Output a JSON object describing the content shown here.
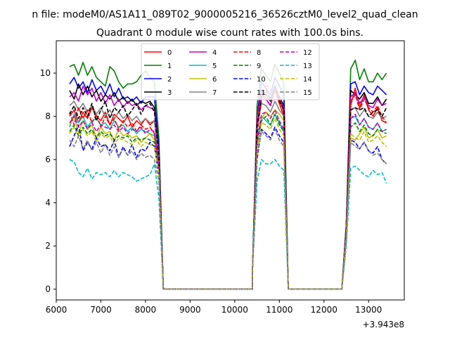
{
  "page": {
    "suptitle": "n file: modeM0/AS1A11_089T02_9000005216_36526cztM0_level2_quad_clean",
    "title": "Quadrant 0 module wise count rates with 100.0s bins.",
    "offset_text": "+3.943e8"
  },
  "chart_data": {
    "type": "line",
    "title": "Quadrant 0 module wise count rates with 100.0s bins.",
    "xlabel": "",
    "ylabel": "",
    "x_offset": "+3.943e8",
    "xlim": [
      6000,
      13800
    ],
    "ylim": [
      -0.5,
      11.5
    ],
    "xticks": [
      6000,
      7000,
      8000,
      9000,
      10000,
      11000,
      12000,
      13000
    ],
    "yticks": [
      0,
      2,
      4,
      6,
      8,
      10
    ],
    "grid": false,
    "legend_position": "upper center",
    "legend_ncol": 4,
    "seg1_x": [
      6300,
      6400,
      6500,
      6600,
      6700,
      6800,
      6900,
      7000,
      7100,
      7200,
      7300,
      7400,
      7500,
      7600,
      7700,
      7800,
      7900,
      8000,
      8100,
      8200,
      8300,
      8400
    ],
    "seg2_x": [
      10400,
      10500,
      10600,
      10700,
      10800,
      10900,
      11000,
      11100,
      11200
    ],
    "seg3_x": [
      12400,
      12500,
      12600,
      12700,
      12800,
      12900,
      13000,
      13100,
      13200,
      13300,
      13400
    ],
    "zero_ranges": [
      [
        8400,
        10400
      ],
      [
        11200,
        12400
      ]
    ],
    "series": [
      {
        "name": "0",
        "color": "#ff0000",
        "dash": "solid",
        "seg1": [
          8.0,
          8.3,
          7.7,
          8.2,
          7.9,
          8.4,
          8.0,
          7.8,
          8.2,
          7.6,
          8.1,
          7.9,
          7.7,
          8.0,
          7.5,
          7.8,
          7.6,
          7.9,
          7.6,
          7.8,
          6.0,
          0
        ],
        "seg2": [
          1,
          7.5,
          9.0,
          8.8,
          8.5,
          9.2,
          8.6,
          8.0,
          0
        ],
        "seg3": [
          0,
          2.5,
          8.5,
          9.3,
          8.4,
          9.0,
          8.3,
          8.0,
          8.4,
          7.8,
          7.7
        ]
      },
      {
        "name": "1",
        "color": "#008000",
        "dash": "solid",
        "seg1": [
          10.3,
          10.4,
          9.9,
          10.5,
          9.9,
          10.3,
          9.8,
          9.6,
          9.4,
          10.3,
          10.1,
          9.6,
          9.3,
          9.5,
          9.5,
          9.6,
          9.9,
          10.1,
          9.8,
          9.6,
          7.0,
          0
        ],
        "seg2": [
          1,
          8.5,
          10.2,
          9.9,
          9.6,
          10.4,
          10.0,
          9.5,
          0
        ],
        "seg3": [
          0,
          3,
          10.2,
          10.6,
          9.7,
          10.2,
          9.6,
          9.6,
          10.0,
          9.7,
          10.0
        ]
      },
      {
        "name": "2",
        "color": "#0000ff",
        "dash": "solid",
        "seg1": [
          9.5,
          9.8,
          9.3,
          9.6,
          9.1,
          9.7,
          9.2,
          9.4,
          9.0,
          9.5,
          8.9,
          9.3,
          8.8,
          8.9,
          8.7,
          8.9,
          8.6,
          8.9,
          8.9,
          8.9,
          6.5,
          0
        ],
        "seg2": [
          1,
          8,
          9.6,
          9.3,
          9.0,
          9.8,
          9.4,
          9.0,
          0
        ],
        "seg3": [
          0,
          3,
          9.5,
          9.6,
          9.0,
          9.4,
          9.1,
          9.0,
          9.4,
          9.2,
          9.0
        ]
      },
      {
        "name": "3",
        "color": "#000000",
        "dash": "solid",
        "seg1": [
          9.2,
          8.8,
          9.5,
          9.0,
          9.4,
          8.9,
          9.2,
          8.7,
          9.0,
          8.8,
          9.1,
          8.7,
          8.9,
          8.6,
          8.8,
          8.5,
          8.7,
          8.6,
          8.7,
          8.4,
          6.3,
          0
        ],
        "seg2": [
          1,
          8,
          9.2,
          9.0,
          8.7,
          9.4,
          8.9,
          8.5,
          0
        ],
        "seg3": [
          0,
          3,
          9.2,
          9.0,
          8.8,
          9.1,
          8.6,
          8.6,
          8.9,
          8.5,
          8.8
        ]
      },
      {
        "name": "4",
        "color": "#bf00bf",
        "dash": "solid",
        "seg1": [
          8.9,
          9.1,
          8.7,
          9.4,
          9.0,
          9.3,
          8.7,
          9.1,
          8.6,
          9.0,
          8.5,
          8.8,
          8.4,
          8.7,
          8.5,
          8.6,
          8.3,
          8.5,
          8.4,
          8.3,
          6.2,
          0
        ],
        "seg2": [
          1,
          8,
          9.1,
          8.8,
          8.5,
          9.3,
          8.8,
          8.4,
          0
        ],
        "seg3": [
          0,
          3,
          8.9,
          9.1,
          8.6,
          8.9,
          8.5,
          8.4,
          8.8,
          8.5,
          8.6
        ]
      },
      {
        "name": "5",
        "color": "#00bfbf",
        "dash": "solid",
        "seg1": [
          7.5,
          8.1,
          7.7,
          8.0,
          7.5,
          7.8,
          7.9,
          7.6,
          7.7,
          7.4,
          7.8,
          7.5,
          7.6,
          7.3,
          7.5,
          7.2,
          7.4,
          7.3,
          7.2,
          7.1,
          5.8,
          0
        ],
        "seg2": [
          1,
          7,
          8.0,
          7.8,
          7.6,
          8.1,
          7.7,
          7.3,
          0
        ],
        "seg3": [
          0,
          2.5,
          7.9,
          8.0,
          7.6,
          7.9,
          7.5,
          7.4,
          7.7,
          7.3,
          7.4
        ]
      },
      {
        "name": "6",
        "color": "#bfbf00",
        "dash": "solid",
        "seg1": [
          7.6,
          8.0,
          7.2,
          7.8,
          7.4,
          7.6,
          7.0,
          7.5,
          7.2,
          7.3,
          6.9,
          7.4,
          7.1,
          7.2,
          7.0,
          7.1,
          6.8,
          7.0,
          7.2,
          6.9,
          5.5,
          0
        ],
        "seg2": [
          1,
          6.5,
          7.9,
          8.2,
          8.0,
          8.3,
          8.1,
          7.8,
          0
        ],
        "seg3": [
          0,
          2.5,
          7.0,
          6.9,
          7.2,
          7.5,
          7.0,
          7.1,
          7.4,
          7.0,
          7.1
        ]
      },
      {
        "name": "7",
        "color": "#808080",
        "dash": "solid",
        "seg1": [
          8.5,
          8.7,
          8.3,
          8.6,
          8.2,
          8.5,
          8.1,
          8.4,
          8.0,
          8.3,
          7.9,
          8.2,
          7.9,
          8.1,
          7.8,
          8.0,
          7.7,
          7.9,
          7.7,
          7.8,
          6.0,
          0
        ],
        "seg2": [
          1,
          7.5,
          8.6,
          8.5,
          8.2,
          8.7,
          8.3,
          8.0,
          0
        ],
        "seg3": [
          0,
          2.8,
          8.3,
          8.4,
          8.0,
          8.3,
          8.0,
          7.9,
          8.2,
          7.9,
          8.0
        ]
      },
      {
        "name": "8",
        "color": "#ff0000",
        "dash": "dashed",
        "seg1": [
          8.2,
          7.6,
          8.4,
          7.9,
          8.3,
          7.7,
          8.1,
          7.5,
          8.0,
          7.6,
          7.9,
          7.4,
          7.8,
          7.5,
          7.7,
          7.3,
          7.6,
          7.4,
          7.5,
          7.2,
          5.8,
          0
        ],
        "seg2": [
          1,
          7.2,
          8.8,
          9.5,
          9.2,
          9.3,
          8.8,
          8.2,
          0
        ],
        "seg3": [
          0,
          2.5,
          8.7,
          9.0,
          8.3,
          8.8,
          8.4,
          8.2,
          8.5,
          8.0,
          7.7
        ]
      },
      {
        "name": "9",
        "color": "#008000",
        "dash": "dashed",
        "seg1": [
          7.3,
          7.6,
          7.1,
          7.5,
          7.2,
          7.4,
          7.0,
          7.3,
          7.1,
          7.2,
          6.9,
          7.1,
          7.0,
          7.1,
          6.8,
          7.0,
          6.9,
          7.0,
          6.9,
          6.8,
          5.6,
          0
        ],
        "seg2": [
          1,
          6.5,
          7.8,
          8.0,
          7.6,
          8.1,
          7.6,
          7.3,
          0
        ],
        "seg3": [
          0,
          2.5,
          7.5,
          7.7,
          7.3,
          7.6,
          7.2,
          7.1,
          7.4,
          7.3,
          7.2
        ]
      },
      {
        "name": "10",
        "color": "#0000ff",
        "dash": "dashed",
        "seg1": [
          6.6,
          7.1,
          7.6,
          6.4,
          6.8,
          6.5,
          7.0,
          6.6,
          6.7,
          6.4,
          6.9,
          6.1,
          6.6,
          6.2,
          6.7,
          6.1,
          6.5,
          6.4,
          6.8,
          6.6,
          5.3,
          0
        ],
        "seg2": [
          1,
          6,
          7.4,
          7.2,
          7.0,
          7.5,
          7.1,
          6.8,
          0
        ],
        "seg3": [
          0,
          2.3,
          6.9,
          6.8,
          6.5,
          6.8,
          6.4,
          6.3,
          6.6,
          6.0,
          5.8
        ]
      },
      {
        "name": "11",
        "color": "#000000",
        "dash": "dashed",
        "seg1": [
          8.1,
          8.5,
          7.9,
          8.4,
          8.0,
          8.6,
          7.8,
          8.3,
          8.7,
          7.9,
          8.4,
          8.2,
          8.5,
          8.0,
          8.3,
          8.6,
          8.1,
          8.5,
          8.6,
          8.2,
          6.1,
          0
        ],
        "seg2": [
          1,
          7.5,
          8.9,
          9.2,
          8.8,
          9.4,
          8.7,
          8.3,
          0
        ],
        "seg3": [
          0,
          2.8,
          8.3,
          8.4,
          8.3,
          8.4,
          8.0,
          8.2,
          8.3,
          8.0,
          8.4
        ]
      },
      {
        "name": "12",
        "color": "#bf00bf",
        "dash": "dashed",
        "seg1": [
          7.7,
          8.0,
          7.5,
          7.8,
          7.4,
          7.7,
          7.3,
          7.6,
          7.5,
          7.4,
          7.6,
          7.3,
          7.5,
          7.2,
          7.4,
          7.3,
          7.5,
          7.2,
          7.4,
          7.3,
          5.7,
          0
        ],
        "seg2": [
          1,
          6.8,
          8.1,
          8.2,
          7.9,
          8.3,
          7.8,
          7.4,
          0
        ],
        "seg3": [
          0,
          2.5,
          7.9,
          8.1,
          7.6,
          7.9,
          7.5,
          7.4,
          7.7,
          7.3,
          7.4
        ]
      },
      {
        "name": "13",
        "color": "#00bfbf",
        "dash": "dashed",
        "seg1": [
          6.0,
          5.9,
          5.4,
          5.2,
          5.6,
          5.1,
          5.4,
          5.3,
          5.4,
          5.2,
          5.5,
          5.2,
          5.4,
          5.3,
          5.2,
          5.0,
          5.1,
          5.2,
          5.3,
          5.8,
          4.2,
          0
        ],
        "seg2": [
          1,
          5,
          6.0,
          5.8,
          5.8,
          6.0,
          5.7,
          5.5,
          0
        ],
        "seg3": [
          0,
          2,
          5.6,
          5.7,
          5.5,
          5.3,
          5.2,
          5.5,
          5.3,
          5.4,
          4.9
        ]
      },
      {
        "name": "14",
        "color": "#bfbf00",
        "dash": "dashed",
        "seg1": [
          7.2,
          7.5,
          7.0,
          7.4,
          7.1,
          7.3,
          6.8,
          7.2,
          7.0,
          7.1,
          6.7,
          7.0,
          6.9,
          6.8,
          6.7,
          6.9,
          6.6,
          6.8,
          6.7,
          6.6,
          5.4,
          0
        ],
        "seg2": [
          1,
          6.5,
          7.7,
          7.6,
          7.4,
          7.9,
          7.4,
          7.1,
          0
        ],
        "seg3": [
          0,
          2.5,
          7.2,
          7.0,
          6.9,
          7.3,
          6.8,
          6.9,
          7.1,
          6.8,
          6.6
        ]
      },
      {
        "name": "15",
        "color": "#808080",
        "dash": "dashed",
        "seg1": [
          6.9,
          6.6,
          7.1,
          6.5,
          6.9,
          6.4,
          6.8,
          6.3,
          6.7,
          6.2,
          6.6,
          6.1,
          6.5,
          6.2,
          6.4,
          6.0,
          6.3,
          6.1,
          6.2,
          6.0,
          5.0,
          0
        ],
        "seg2": [
          1,
          6.2,
          7.3,
          7.1,
          6.9,
          7.4,
          6.9,
          6.6,
          0
        ],
        "seg3": [
          0,
          2.2,
          6.8,
          6.6,
          6.5,
          6.8,
          6.4,
          6.2,
          6.3,
          6.0,
          5.8
        ]
      }
    ]
  }
}
